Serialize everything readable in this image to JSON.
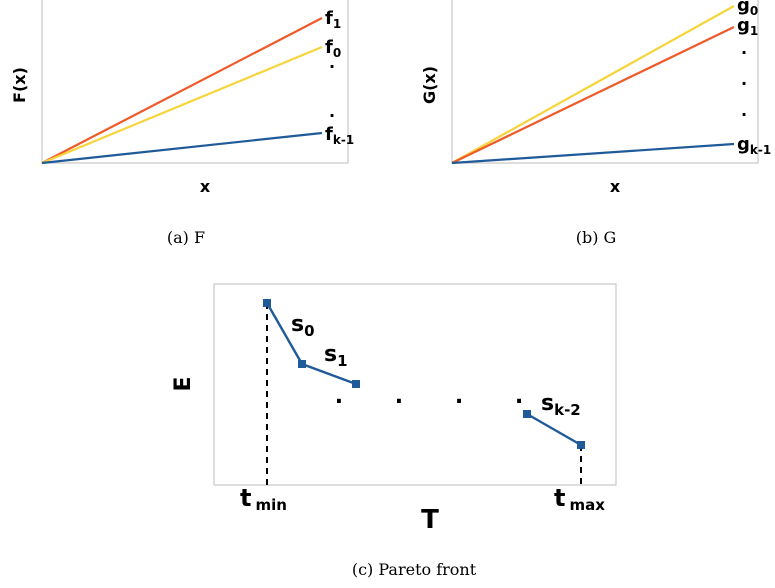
{
  "panel_a": {
    "caption": "(a) F",
    "ylabel": "F(x)",
    "xlabel": "x",
    "lines": [
      {
        "label_main": "f",
        "label_sub": "1",
        "color": "#f05a28"
      },
      {
        "label_main": "f",
        "label_sub": "0",
        "color": "#f7d43a"
      },
      {
        "label_main": "f",
        "label_sub": "k-1",
        "color": "#1f5a99"
      }
    ],
    "dots": [
      "·",
      "·"
    ]
  },
  "panel_b": {
    "caption": "(b) G",
    "ylabel": "G(x)",
    "xlabel": "x",
    "lines": [
      {
        "label_main": "g",
        "label_sub": "0",
        "color": "#f7d43a"
      },
      {
        "label_main": "g",
        "label_sub": "1",
        "color": "#f05a28"
      },
      {
        "label_main": "g",
        "label_sub": "k-1",
        "color": "#1f5a99"
      }
    ],
    "dots": [
      "·",
      "·",
      "·"
    ]
  },
  "panel_c": {
    "caption": "(c) Pareto front",
    "ylabel": "E",
    "xlabel": "T",
    "tmin_main": "t",
    "tmin_sub": "min",
    "tmax_main": "t",
    "tmax_sub": "max",
    "segments": [
      {
        "label_main": "s",
        "label_sub": "0"
      },
      {
        "label_main": "s",
        "label_sub": "1"
      },
      {
        "label_main": "s",
        "label_sub": "k-2"
      }
    ],
    "ellipsis": ". . . .",
    "line_color": "#1f5a99"
  }
}
